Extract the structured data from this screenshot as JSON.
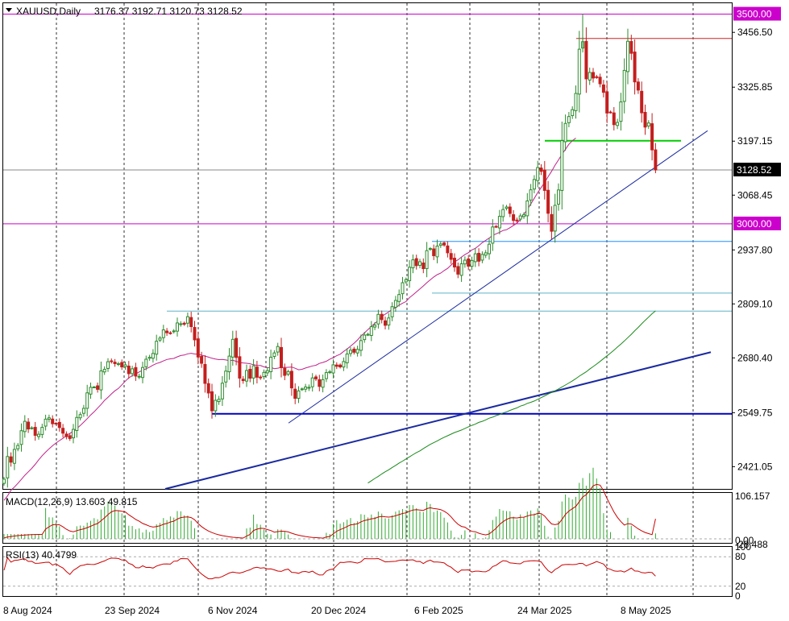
{
  "header": {
    "symbol": "XAUUSD,Daily",
    "ohlc": "3176.37 3192.71 3120.73 3128.52"
  },
  "macd_label": "MACD(12,26,9) 13.603 49.815",
  "rsi_label": "RSI(13) 40.4799",
  "colors": {
    "bull": "#2e8b2e",
    "bear": "#c41e1e",
    "magenta": "#cc00cc",
    "ma_short": "#c0208a",
    "ma_long": "#1a8a1a",
    "trend_navy": "#1a2aa0",
    "support_blue": "#0000c0",
    "cyan": "#1e90ff",
    "green_level": "#00cc00",
    "grid": "#000000"
  },
  "chart_data": {
    "type": "candlestick",
    "title": "XAUUSD,Daily",
    "ylim": [
      2368,
      3526
    ],
    "y_ticks": [
      "3456.50",
      "3325.85",
      "3197.15",
      "3068.45",
      "2937.80",
      "2809.10",
      "2680.40",
      "2549.75",
      "2421.05"
    ],
    "y_tick_values": [
      3456.5,
      3325.85,
      3197.15,
      3068.45,
      2937.8,
      2809.1,
      2680.4,
      2549.75,
      2421.05
    ],
    "highlighted_levels": [
      {
        "label": "3500.00",
        "value": 3500.0
      },
      {
        "label": "3000.00",
        "value": 3000.0
      }
    ],
    "current_price": {
      "label": "3128.52",
      "value": 3128.52
    },
    "x_labels": [
      "8 Aug 2024",
      "23 Sep 2024",
      "6 Nov 2024",
      "20 Dec 2024",
      "6 Feb 2025",
      "24 Mar 2025",
      "8 May 2025"
    ],
    "last_bar": {
      "open": 3176.37,
      "high": 3192.71,
      "low": 3120.73,
      "close": 3128.52
    },
    "horizontal_levels": [
      {
        "value": 3442.0,
        "color": "#cc2222"
      },
      {
        "value": 3198.0,
        "color": "#00cc00"
      },
      {
        "value": 2958.0,
        "color": "#1e90ff"
      },
      {
        "value": 2835.0,
        "color": "#5fb3c8"
      },
      {
        "value": 2792.0,
        "color": "#5fb3c8"
      },
      {
        "value": 2547.0,
        "color": "#0000c0"
      }
    ],
    "series": [
      {
        "name": "close",
        "values": [
          2391.23,
          2445.19,
          2431.79,
          2462.13,
          2471.59,
          2506.79,
          2529.17,
          2510.87,
          2513.54,
          2495.73,
          2498.29,
          2514.75,
          2534.36,
          2537.51,
          2523.44,
          2523.96,
          2514.31,
          2500.93,
          2492.6,
          2488.19,
          2509.98,
          2538.39,
          2545.18,
          2560.01,
          2597.02,
          2610.26,
          2610.93,
          2605.42,
          2649.38,
          2653.22,
          2671.3,
          2672.67,
          2666.68,
          2666.55,
          2658.93,
          2663.84,
          2642.76,
          2654.39,
          2636.99,
          2636.33,
          2657.52,
          2677.19,
          2681.83,
          2690.97,
          2720.09,
          2727.61,
          2747.14,
          2740.38,
          2739.76,
          2744.7,
          2763.67,
          2761.75,
          2760.58,
          2778.6,
          2754.99,
          2723.33,
          2682.46,
          2667.57,
          2619.65,
          2596.7,
          2554.38,
          2579.22,
          2581.75,
          2620.07,
          2648.86,
          2684.63,
          2724.59,
          2681.43,
          2632.15,
          2626.2,
          2650.3,
          2632.04,
          2661.58,
          2634.26,
          2632.83,
          2645.85,
          2650.08,
          2682.01,
          2692.22,
          2707.57,
          2657.07,
          2638.71,
          2647.66,
          2608.78,
          2583.94,
          2601.7,
          2606.52,
          2611.04,
          2610.14,
          2632.61,
          2630.48,
          2612.34,
          2628.45,
          2645.33,
          2647.24,
          2663.89,
          2660.27,
          2658.9,
          2671.69,
          2689.73,
          2698.66,
          2693.89,
          2700.71,
          2721.7,
          2734.7,
          2736.52,
          2754.81,
          2758.38,
          2784.11,
          2771.69,
          2758.11,
          2775.55,
          2802.52,
          2817.34,
          2831.45,
          2859.6,
          2867.11,
          2896.42,
          2914.18,
          2900.42,
          2909.65,
          2893.21,
          2936.14,
          2941.13,
          2924.02,
          2947.0,
          2952.03,
          2949.51,
          2930.95,
          2915.42,
          2897.08,
          2880.09,
          2904.73,
          2913.35,
          2899.13,
          2912.66,
          2928.53,
          2910.9,
          2927.11,
          2930.86,
          2951.43,
          2992.59,
          2993.02,
          3017.86,
          3034.1,
          3040.09,
          3024.76,
          3008.16,
          3008.52,
          3018.94,
          3021.59,
          3054.63,
          3081.15,
          3105.74,
          3134.25,
          3125.2,
          3079.61,
          3025.17,
          2982.36,
          3044.09,
          3080.74,
          3198.4,
          3239.34,
          3255.87,
          3272.21,
          3310.91,
          3416.34,
          3434.26,
          3345.72,
          3360.95,
          3347.65,
          3350.27,
          3334.0,
          3313.51,
          3264.12,
          3266.52,
          3236.5,
          3241.8,
          3290.64,
          3365.82,
          3435.26,
          3406.67,
          3338.37,
          3318.89,
          3264.77,
          3230.67,
          3240.41,
          3176.37,
          3128.52
        ]
      },
      {
        "name": "MA",
        "values": [
          2340.7,
          2351.2,
          2364.9,
          2372.5,
          2381.2,
          2390.7,
          2400.5,
          2408.8,
          2417.0,
          2426.5,
          2437.3,
          2447.2,
          2455.5,
          2463.7,
          2470.9,
          2477.5,
          2483.3,
          2488.6,
          2495.6,
          2500.4,
          2505.6,
          2511.8,
          2519.2,
          2527.2,
          2535.5,
          2544.3,
          2551.8,
          2560.6,
          2569.3,
          2579.0,
          2586.6,
          2594.6,
          2601.9,
          2607.5,
          2616.1,
          2625.0,
          2632.8,
          2638.0,
          2642.2,
          2646.9,
          2651.0,
          2654.5,
          2658.4,
          2663.2,
          2667.1,
          2669.5,
          2673.2,
          2676.6,
          2678.2,
          2679.2,
          2682.9,
          2686.1,
          2687.2,
          2690.1,
          2691.3,
          2689.6,
          2689.1,
          2686.8,
          2684.6,
          2682.1,
          2679.4,
          2677.8,
          2676.2,
          2676.7,
          2675.5,
          2673.9,
          2674.6,
          2672.1,
          2669.3,
          2668.4,
          2667.5,
          2666.4,
          2664.2,
          2662.6,
          2662.2,
          2658.9,
          2657.0,
          2657.7,
          2654.7,
          2655.8,
          2657.8,
          2657.5,
          2658.0,
          2658.6,
          2655.6,
          2652.1,
          2653.1,
          2656.3,
          2658.8,
          2661.2,
          2662.8,
          2667.2,
          2669.5,
          2672.3,
          2677.4,
          2681.0,
          2685.6,
          2689.1,
          2695.9,
          2701.5,
          2708.2,
          2715.4,
          2723.1,
          2732.6,
          2739.7,
          2747.9,
          2755.4,
          2762.9,
          2769.4,
          2779.6,
          2784.6,
          2790.0,
          2795.8,
          2800.1,
          2806.1,
          2810.8,
          2814.7,
          2824.0,
          2830.7,
          2837.8,
          2844.9,
          2852.0,
          2859.6,
          2866.6,
          2873.3,
          2878.8,
          2882.4,
          2888.6,
          2893.8,
          2901.6,
          2909.3,
          2914.2,
          2920.8,
          2926.7,
          2931.2,
          2937.8,
          2941.7,
          2948.0,
          2955.0,
          2960.6,
          2966.2,
          2972.4,
          2976.1,
          2979.9,
          2984.2,
          2985.9,
          2990.8,
          2996.2,
          3001.5,
          3010.2,
          3022.8,
          3033.9,
          3047.4,
          3060.6,
          3074.6,
          3086.6,
          3098.7,
          3112.4,
          3125.3,
          3139.9,
          3152.4,
          3165.9,
          3177.6,
          3189.8,
          3198.1,
          3204.5
        ]
      },
      {
        "name": "MA_long",
        "values": [
          2382.1,
          2387.4,
          2392.9,
          2398.0,
          2403.8,
          2409.0,
          2413.6,
          2419.0,
          2424.0,
          2429.7,
          2434.2,
          2439.4,
          2444.4,
          2449.6,
          2454.6,
          2458.7,
          2464.3,
          2469.2,
          2474.2,
          2478.3,
          2482.5,
          2486.8,
          2491.1,
          2494.7,
          2498.5,
          2502.5,
          2505.3,
          2508.4,
          2512.2,
          2516.0,
          2519.5,
          2522.4,
          2526.6,
          2529.2,
          2532.5,
          2536.7,
          2539.1,
          2542.7,
          2545.2,
          2549.0,
          2551.6,
          2555.3,
          2558.4,
          2561.1,
          2565.4,
          2568.0,
          2571.9,
          2574.4,
          2577.6,
          2581.6,
          2585.6,
          2589.8,
          2594.1,
          2598.0,
          2601.9,
          2606.4,
          2611.2,
          2615.7,
          2620.5,
          2625.6,
          2630.9,
          2636.8,
          2642.1,
          2647.3,
          2653.7,
          2659.8,
          2665.7,
          2672.0,
          2678.8,
          2685.2,
          2691.8,
          2698.7,
          2706.2,
          2713.3,
          2720.8,
          2728.7,
          2736.6,
          2745.1,
          2753.1,
          2761.6,
          2769.9,
          2777.6,
          2785.6,
          2792.4
        ]
      }
    ],
    "macd": {
      "ylim": [
        -10,
        114
      ],
      "ticks": [
        "106.157",
        "0.00",
        "-28.488"
      ]
    },
    "rsi": {
      "ylim": [
        0,
        100
      ],
      "ticks": [
        "100",
        "80",
        "20",
        "0"
      ]
    }
  }
}
